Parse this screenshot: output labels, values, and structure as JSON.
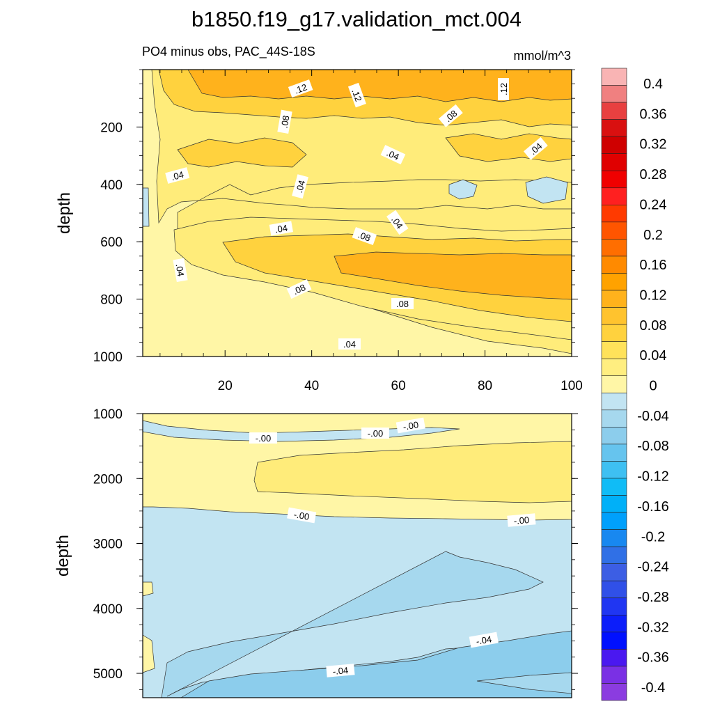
{
  "title": "b1850.f19_g17.validation_mct.004",
  "chart_data": {
    "type": "heatmap",
    "variable_label": "PO4 minus obs, PAC_44S-18S",
    "units": "mmol/m^3",
    "x_ticks": [
      "20",
      "40",
      "60",
      "80",
      "100"
    ],
    "x_range": [
      1,
      100
    ],
    "colorbar": {
      "labels": [
        "0.4",
        "0.36",
        "0.32",
        "0.28",
        "0.24",
        "0.2",
        "0.16",
        "0.12",
        "0.08",
        "0.04",
        "0",
        "-0.04",
        "-0.08",
        "-0.12",
        "-0.16",
        "-0.2",
        "-0.24",
        "-0.28",
        "-0.32",
        "-0.36",
        "-0.4"
      ],
      "colors": [
        "#f9b4b4",
        "#f08080",
        "#e84040",
        "#d91010",
        "#cf0000",
        "#e00000",
        "#f00000",
        "#ff2020",
        "#ff3a00",
        "#ff5500",
        "#ff6e00",
        "#ff8a00",
        "#ffa200",
        "#ffb21c",
        "#ffc32e",
        "#ffd23e",
        "#ffe25a",
        "#ffee80",
        "#fff6a6",
        "#c2e4f2",
        "#a6d8ee",
        "#8ccdec",
        "#66c4ee",
        "#3ec0f2",
        "#10bcf6",
        "#00b0f8",
        "#00a0fc",
        "#1888f0",
        "#3070e6",
        "#3c5ee4",
        "#3050e8",
        "#2036f2",
        "#0c1efa",
        "#0010ff",
        "#4a18f0",
        "#7a30e4",
        "#8b3ce0"
      ]
    },
    "panels": [
      {
        "name": "upper",
        "ylabel": "depth",
        "y_ticks": [
          "200",
          "400",
          "600",
          "800",
          "1000"
        ],
        "y_range": [
          0,
          1000
        ],
        "contour_labels": [
          ".12",
          ".12",
          ".12",
          ".08",
          ".08",
          ".04",
          ".04",
          ".04",
          ".04",
          ".04",
          ".04",
          ".08",
          ".04",
          ".08",
          ".08",
          ".04"
        ]
      },
      {
        "name": "lower",
        "ylabel": "depth",
        "y_ticks": [
          "1000",
          "2000",
          "3000",
          "4000",
          "5000"
        ],
        "y_range": [
          1000,
          5375
        ],
        "contour_labels": [
          "-.00",
          "-.00",
          "-.00",
          "-.00",
          "-.00",
          "-.04",
          "-.04"
        ]
      }
    ]
  }
}
